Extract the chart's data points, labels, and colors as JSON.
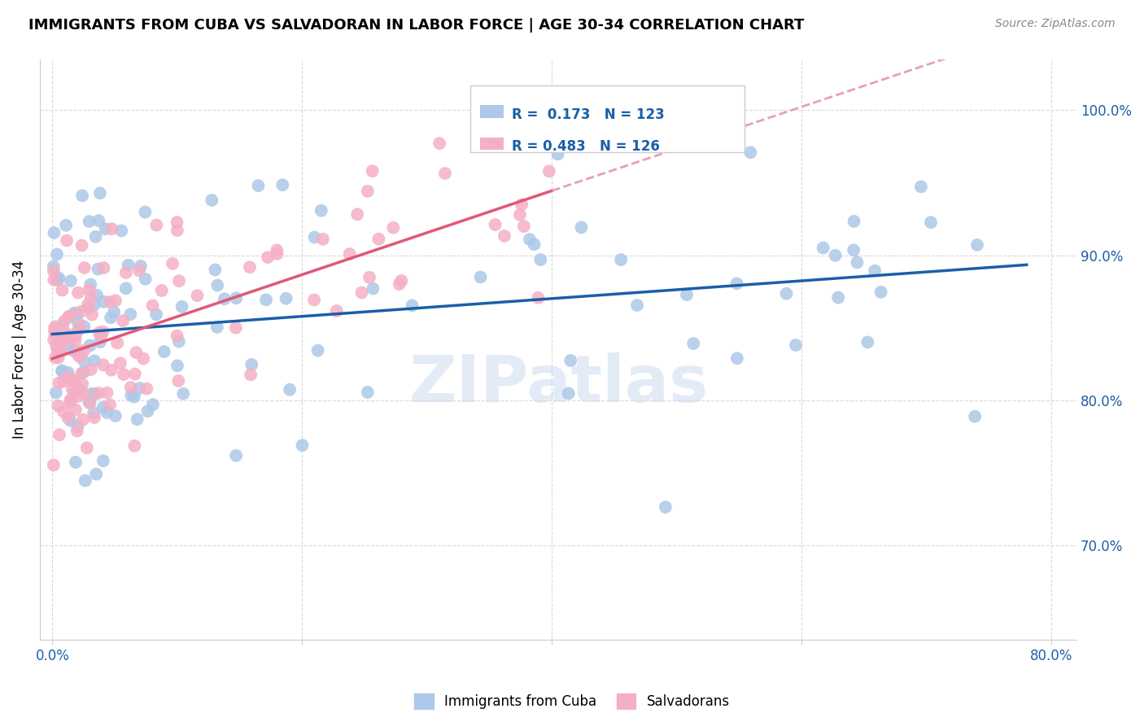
{
  "title": "IMMIGRANTS FROM CUBA VS SALVADORAN IN LABOR FORCE | AGE 30-34 CORRELATION CHART",
  "source": "Source: ZipAtlas.com",
  "ylabel": "In Labor Force | Age 30-34",
  "xlim": [
    -0.01,
    0.82
  ],
  "ylim": [
    0.635,
    1.035
  ],
  "yticks": [
    0.7,
    0.8,
    0.9,
    1.0
  ],
  "ytick_labels": [
    "70.0%",
    "80.0%",
    "90.0%",
    "100.0%"
  ],
  "xticks": [
    0.0,
    0.2,
    0.4,
    0.6,
    0.8
  ],
  "xtick_labels": [
    "0.0%",
    "",
    "",
    "",
    "80.0%"
  ],
  "cuba_R": 0.173,
  "cuba_N": 123,
  "salv_R": 0.483,
  "salv_N": 126,
  "cuba_color": "#adc8e8",
  "salv_color": "#f5afc4",
  "cuba_line_color": "#1a5fa8",
  "salv_line_color": "#e05878",
  "salv_dash_color": "#e8a0b0",
  "watermark_color": "#ccdcf0",
  "note_color": "#1a5fa8"
}
